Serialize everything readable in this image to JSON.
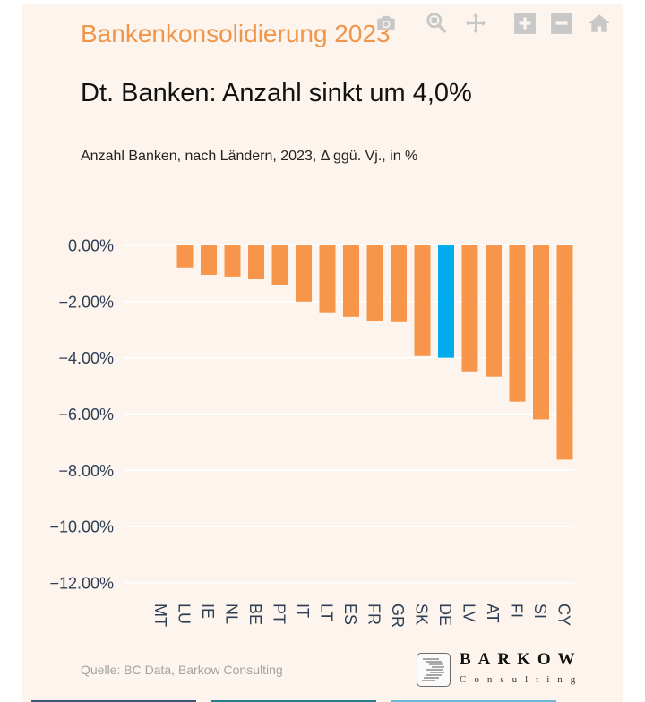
{
  "header": {
    "kicker": "Bankenkonsolidierung 2023",
    "headline": "Dt. Banken: Anzahl sinkt um 4,0%",
    "subtitle": "Anzahl Banken, nach Ländern, 2023, Δ ggü. Vj., in %"
  },
  "modebar": {
    "icons": [
      "camera-icon",
      "zoom-icon",
      "pan-icon",
      "zoom-in-icon",
      "zoom-out-icon",
      "home-icon"
    ]
  },
  "colors": {
    "bar_default": "#f7964a",
    "bar_highlight": "#00aced",
    "background": "#fdf5ed",
    "gridline": "#ffffff",
    "tick_text": "#2d3e55",
    "kicker": "#f0964a",
    "strips": [
      "#3d5472",
      "#2a7d8c",
      "#6fb6d4"
    ]
  },
  "chart_data": {
    "type": "bar",
    "title": "Dt. Banken: Anzahl sinkt um 4,0%",
    "subtitle": "Anzahl Banken, nach Ländern, 2023, Δ ggü. Vj., in %",
    "xlabel": "",
    "ylabel": "",
    "categories": [
      "MT",
      "LU",
      "IE",
      "NL",
      "BE",
      "PT",
      "IT",
      "LT",
      "ES",
      "FR",
      "GR",
      "SK",
      "DE",
      "LV",
      "AT",
      "FI",
      "SI",
      "CY"
    ],
    "values": [
      0.0,
      -0.79,
      -1.05,
      -1.11,
      -1.21,
      -1.4,
      -2.0,
      -2.41,
      -2.54,
      -2.7,
      -2.73,
      -3.94,
      -4.0,
      -4.48,
      -4.67,
      -5.56,
      -6.19,
      -7.62
    ],
    "highlight": "DE",
    "ylim": [
      -12,
      0
    ],
    "yticks": [
      0,
      -2,
      -4,
      -6,
      -8,
      -10,
      -12
    ],
    "ytick_labels": [
      "0.00%",
      "−2.00%",
      "−4.00%",
      "−6.00%",
      "−8.00%",
      "−10.00%",
      "−12.00%"
    ],
    "grid": true,
    "legend": "none",
    "x_label_orientation": "rotated 90° clockwise"
  },
  "footer": {
    "source": "Quelle: BC Data, Barkow Consulting",
    "logo_word": "BARKOW",
    "logo_sub": "Consulting"
  }
}
